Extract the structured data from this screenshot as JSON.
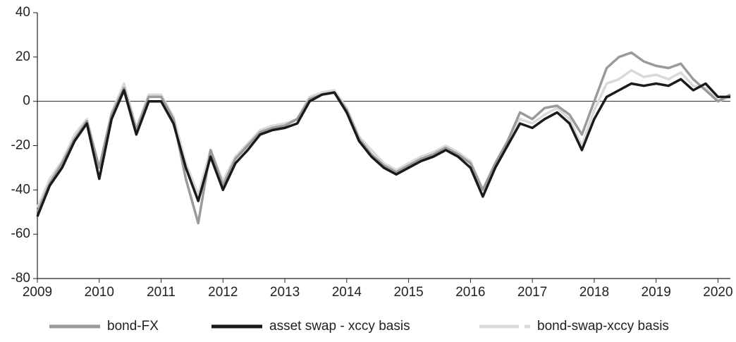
{
  "chart_data": {
    "type": "line",
    "x": [
      2009,
      2009.2,
      2009.4,
      2009.6,
      2009.8,
      2010,
      2010.2,
      2010.4,
      2010.6,
      2010.8,
      2011,
      2011.2,
      2011.4,
      2011.6,
      2011.8,
      2012,
      2012.2,
      2012.4,
      2012.6,
      2012.8,
      2013,
      2013.2,
      2013.4,
      2013.6,
      2013.8,
      2014,
      2014.2,
      2014.4,
      2014.6,
      2014.8,
      2015,
      2015.2,
      2015.4,
      2015.6,
      2015.8,
      2016,
      2016.2,
      2016.4,
      2016.6,
      2016.8,
      2017,
      2017.2,
      2017.4,
      2017.6,
      2017.8,
      2018,
      2018.2,
      2018.4,
      2018.6,
      2018.8,
      2019,
      2019.2,
      2019.4,
      2019.6,
      2019.8,
      2020,
      2020.2
    ],
    "series": [
      {
        "name": "bond-FX",
        "color": "#9a9a9a",
        "dashed": false,
        "values": [
          -50,
          -37,
          -28,
          -17,
          -9,
          -30,
          -6,
          6,
          -13,
          2,
          2,
          -8,
          -35,
          -55,
          -22,
          -38,
          -26,
          -20,
          -14,
          -12,
          -11,
          -8,
          1,
          3,
          4,
          -4,
          -17,
          -24,
          -29,
          -32,
          -29,
          -26,
          -24,
          -21,
          -24,
          -28,
          -40,
          -28,
          -18,
          -5,
          -8,
          -3,
          -2,
          -6,
          -15,
          0,
          15,
          20,
          22,
          18,
          16,
          15,
          17,
          10,
          5,
          0,
          3
        ]
      },
      {
        "name": "asset swap - xccy basis",
        "color": "#1a1a1a",
        "dashed": false,
        "values": [
          -52,
          -38,
          -30,
          -18,
          -10,
          -35,
          -8,
          5,
          -15,
          0,
          0,
          -10,
          -30,
          -45,
          -25,
          -40,
          -28,
          -22,
          -15,
          -13,
          -12,
          -10,
          0,
          3,
          4,
          -5,
          -18,
          -25,
          -30,
          -33,
          -30,
          -27,
          -25,
          -22,
          -25,
          -30,
          -43,
          -30,
          -20,
          -10,
          -12,
          -8,
          -5,
          -10,
          -22,
          -8,
          2,
          5,
          8,
          7,
          8,
          7,
          10,
          5,
          8,
          2,
          2
        ]
      },
      {
        "name": "bond-swap-xccy basis",
        "color": "#d9d9d9",
        "dashed": true,
        "values": [
          -48,
          -35,
          -27,
          -15,
          -8,
          -30,
          -5,
          8,
          -12,
          3,
          3,
          -7,
          -28,
          -42,
          -22,
          -36,
          -25,
          -19,
          -13,
          -11,
          -10,
          -8,
          2,
          4,
          5,
          -3,
          -16,
          -22,
          -28,
          -31,
          -28,
          -25,
          -23,
          -20,
          -23,
          -27,
          -40,
          -28,
          -18,
          -8,
          -10,
          -6,
          -3,
          -8,
          -20,
          -4,
          8,
          10,
          14,
          11,
          12,
          10,
          13,
          7,
          6,
          0,
          2
        ]
      }
    ],
    "xlim": [
      2009,
      2020.2
    ],
    "ylim": [
      -80,
      40
    ],
    "xticks": [
      2009,
      2010,
      2011,
      2012,
      2013,
      2014,
      2015,
      2016,
      2017,
      2018,
      2019,
      2020
    ],
    "yticks": [
      -80,
      -60,
      -40,
      -20,
      0,
      20,
      40
    ],
    "legend": "bottom"
  }
}
